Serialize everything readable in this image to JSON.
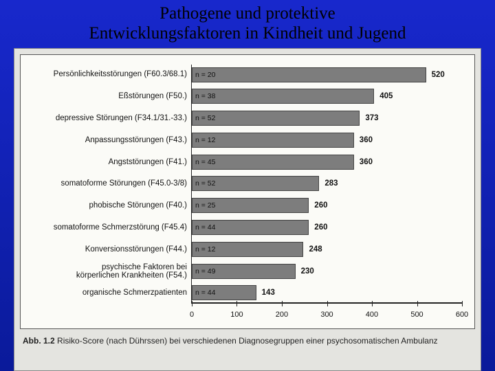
{
  "slide": {
    "title_line1": "Pathogene und protektive",
    "title_line2": "Entwicklungsfaktoren in Kindheit und Jugend"
  },
  "chart": {
    "type": "bar-horizontal",
    "background_color": "#fbfbf7",
    "bar_color": "#7d7d7d",
    "bar_border_color": "#444444",
    "axis_color": "#222222",
    "label_fontsize": 11.5,
    "value_fontsize": 11.5,
    "n_label_fontsize": 10.5,
    "xlim": [
      0,
      600
    ],
    "xtick_step": 100,
    "xticks": [
      0,
      100,
      200,
      300,
      400,
      500,
      600
    ],
    "rows": [
      {
        "label": "Persönlichkeitsstörungen (F60.3/68.1)",
        "n": 20,
        "value": 520
      },
      {
        "label": "Eßstörungen (F50.)",
        "n": 38,
        "value": 405
      },
      {
        "label": "depressive Störungen (F34.1/31.-33.)",
        "n": 52,
        "value": 373
      },
      {
        "label": "Anpassungsstörungen (F43.)",
        "n": 12,
        "value": 360
      },
      {
        "label": "Angststörungen (F41.)",
        "n": 45,
        "value": 360
      },
      {
        "label": "somatoforme Störungen (F45.0-3/8)",
        "n": 52,
        "value": 283
      },
      {
        "label": "phobische Störungen (F40.)",
        "n": 25,
        "value": 260
      },
      {
        "label": "somatoforme Schmerzstörung (F45.4)",
        "n": 44,
        "value": 260
      },
      {
        "label": "Konversionsstörungen (F44.)",
        "n": 12,
        "value": 248
      },
      {
        "label": "psychische Faktoren bei\nkörperlichen Krankheiten (F54.)",
        "n": 49,
        "value": 230
      },
      {
        "label": "organische Schmerzpatienten",
        "n": 44,
        "value": 143
      }
    ]
  },
  "caption": {
    "bold": "Abb. 1.2",
    "text": " Risiko-Score (nach Dührssen) bei verschiedenen Diagnosegruppen einer psychosomatischen Ambulanz"
  },
  "colors": {
    "slide_bg_top": "#1828cc",
    "slide_bg_bottom": "#0a1a9a",
    "frame_bg": "#e4e4e0"
  }
}
